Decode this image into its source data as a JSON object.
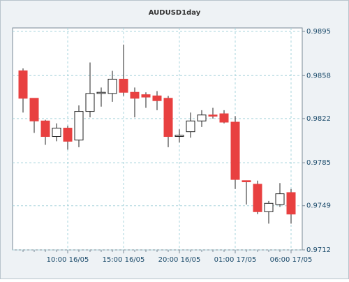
{
  "chart_data": {
    "type": "candlestick",
    "title": "AUDUSD1day",
    "categories": [
      null,
      null,
      null,
      null,
      "10:00 16/05",
      null,
      null,
      null,
      null,
      "15:00 16/05",
      null,
      null,
      null,
      null,
      "20:00 16/05",
      null,
      null,
      null,
      null,
      "01:00 17/05",
      null,
      null,
      null,
      null,
      "06:00 17/05"
    ],
    "open": [
      0.9862,
      0.9839,
      0.982,
      0.9807,
      0.9814,
      0.9804,
      0.9828,
      0.9843,
      0.9843,
      0.9855,
      0.9844,
      0.9842,
      0.9841,
      0.9839,
      0.9807,
      0.9811,
      0.982,
      0.9825,
      0.9826,
      0.9819,
      0.977,
      0.9767,
      0.9744,
      0.975,
      0.976
    ],
    "high": [
      0.9864,
      0.9839,
      0.9821,
      0.9818,
      0.9816,
      0.9833,
      0.9869,
      0.9848,
      0.9862,
      0.9884,
      0.9848,
      0.9844,
      0.9845,
      0.9841,
      0.9813,
      0.9827,
      0.9829,
      0.9831,
      0.9829,
      0.9824,
      0.977,
      0.977,
      0.9753,
      0.9768,
      0.9763
    ],
    "low": [
      0.9827,
      0.981,
      0.98,
      0.9803,
      0.9796,
      0.9798,
      0.9823,
      0.9832,
      0.9836,
      0.9841,
      0.9823,
      0.9831,
      0.9829,
      0.9798,
      0.9802,
      0.9806,
      0.9815,
      0.9822,
      0.9818,
      0.9763,
      0.975,
      0.9742,
      0.9734,
      0.9748,
      0.9734
    ],
    "close": [
      0.9839,
      0.982,
      0.9807,
      0.9814,
      0.9803,
      0.9828,
      0.9843,
      0.9844,
      0.9855,
      0.9844,
      0.9839,
      0.984,
      0.9837,
      0.9807,
      0.9808,
      0.982,
      0.9825,
      0.9824,
      0.9819,
      0.9771,
      0.9769,
      0.9744,
      0.9751,
      0.9759,
      0.9742
    ],
    "up_color": "#ffffff",
    "down_color": "#e84040",
    "ylim": [
      0.9712,
      0.9895
    ],
    "yticks": [
      0.9712,
      0.9749,
      0.9785,
      0.9822,
      0.9858,
      0.9895
    ],
    "grid": true
  }
}
